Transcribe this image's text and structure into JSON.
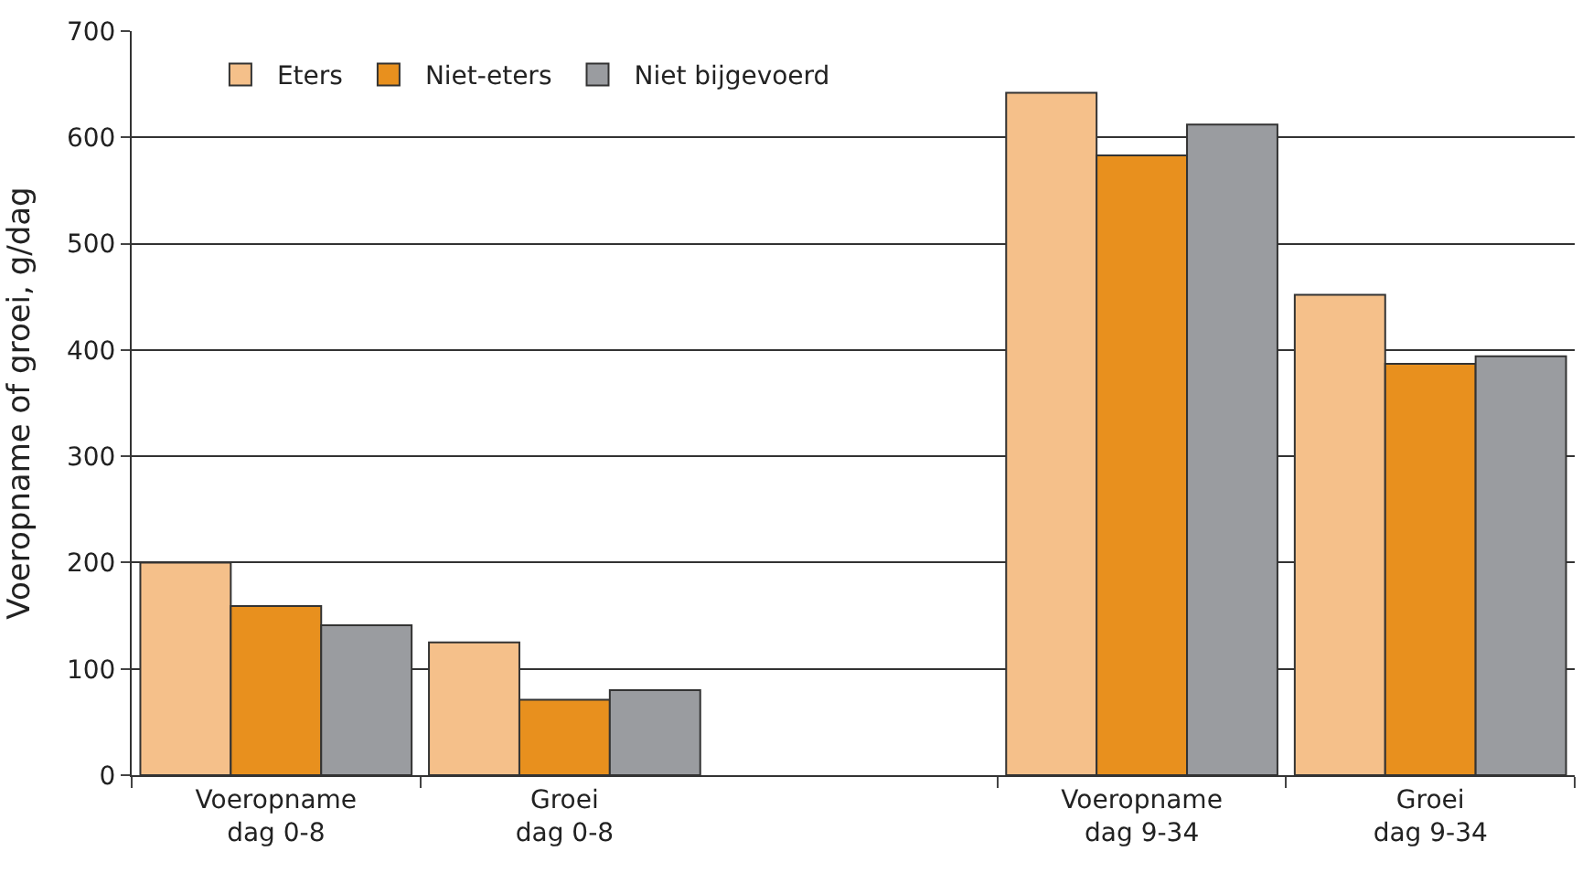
{
  "chart_data": {
    "type": "bar",
    "ylabel": "Voeropname of groei, g/dag",
    "categories": [
      "Voeropname\ndag 0-8",
      "Groei\ndag 0-8",
      null,
      "Voeropname\ndag 9-34",
      "Groei\ndag 9-34"
    ],
    "series": [
      {
        "name": "Eters",
        "color": "#f5c08a",
        "values": [
          200,
          125,
          null,
          642,
          452
        ]
      },
      {
        "name": "Niet-eters",
        "color": "#e8901e",
        "values": [
          159,
          71,
          null,
          583,
          387
        ]
      },
      {
        "name": "Niet bijgevoerd",
        "color": "#9a9ca0",
        "values": [
          141,
          80,
          null,
          612,
          394
        ]
      }
    ],
    "ylim": [
      0,
      700
    ],
    "yticks": [
      0,
      100,
      200,
      300,
      400,
      500,
      600,
      700
    ],
    "grid": "y",
    "legend": "top left"
  }
}
